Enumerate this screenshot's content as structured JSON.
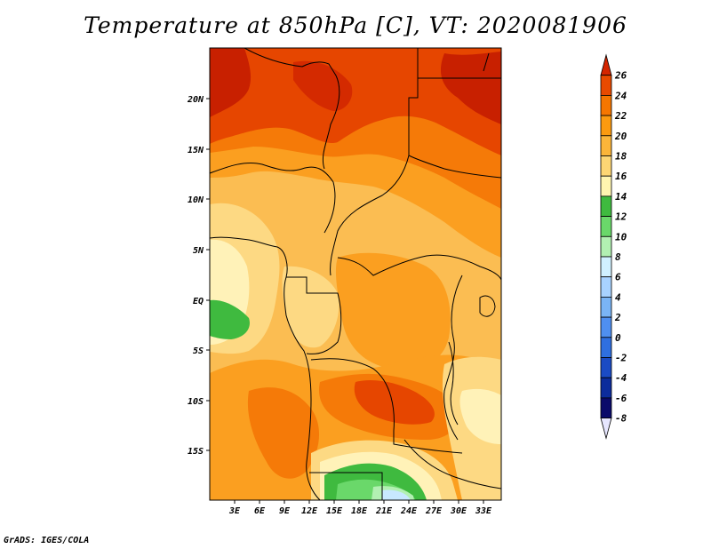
{
  "title": "Temperature at 850hPa [C], VT: 2020081906",
  "footer": "GrADS: IGES/COLA",
  "lat_labels": [
    "20N",
    "15N",
    "10N",
    "5N",
    "EQ",
    "5S",
    "10S",
    "15S"
  ],
  "lon_labels": [
    "3E",
    "6E",
    "9E",
    "12E",
    "15E",
    "18E",
    "21E",
    "24E",
    "27E",
    "30E",
    "33E"
  ],
  "colorbar": {
    "levels": [
      "26",
      "24",
      "22",
      "20",
      "18",
      "16",
      "14",
      "12",
      "10",
      "8",
      "6",
      "4",
      "2",
      "0",
      "-2",
      "-4",
      "-6",
      "-8"
    ],
    "colors": [
      "#d42500",
      "#e84a00",
      "#f57600",
      "#fb9a10",
      "#fbb53a",
      "#fdd674",
      "#fff5b0",
      "#3fba3f",
      "#6ad86a",
      "#b2f0b2",
      "#d0f0ff",
      "#a8d2ff",
      "#7ab4f5",
      "#4f8ff0",
      "#2f6fe0",
      "#1b4bc4",
      "#0c2c9c",
      "#0a0a6a"
    ]
  },
  "map_palette": {
    "t26": "#c82000",
    "t24": "#e64600",
    "t22": "#f57a08",
    "t20": "#fb9f20",
    "t18": "#fbbd52",
    "t16": "#fdd983",
    "t14": "#fff2b8",
    "t12": "#3fba3f",
    "t10": "#6ad86a",
    "t8": "#b2f0b2",
    "t6": "#c8e8ff",
    "t4": "#a0ccff"
  }
}
